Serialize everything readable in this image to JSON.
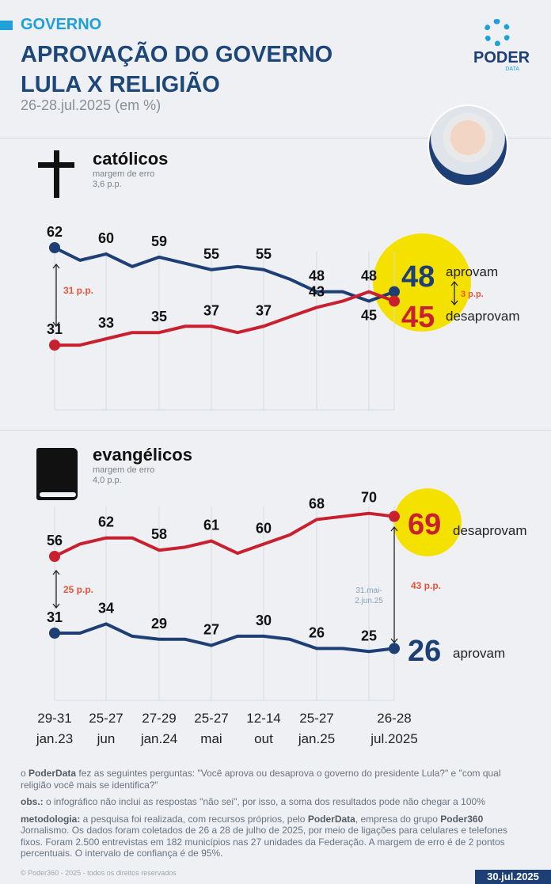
{
  "header": {
    "tag": "GOVERNO",
    "title_line1": "APROVAÇÃO DO GOVERNO",
    "title_line2": "LULA X RELIGIÃO",
    "subtitle": "26-28.jul.2025 (em %)"
  },
  "logo": {
    "name": "PODER",
    "sub": "DATA"
  },
  "colors": {
    "approve": "#1d3f75",
    "disapprove": "#c8202f",
    "highlight": "#f5e100",
    "gap": "#e8553a",
    "accent": "#1ea0dc"
  },
  "chart_data": [
    {
      "type": "line",
      "title": "católicos",
      "icon": "cross-icon",
      "margin_label": "margem de erro",
      "margin_value": "3,6 p.p.",
      "ylim": [
        20,
        75
      ],
      "series": [
        {
          "name": "aprovam",
          "values": [
            62,
            58,
            60,
            56,
            59,
            57,
            55,
            56,
            55,
            52,
            48,
            48,
            45,
            48
          ],
          "labels": {
            "0": "62",
            "2": "60",
            "4": "59",
            "6": "55",
            "8": "55",
            "10": "48"
          },
          "below": {
            "12": "45"
          }
        },
        {
          "name": "desaprovam",
          "values": [
            31,
            31,
            33,
            35,
            35,
            37,
            37,
            35,
            37,
            40,
            43,
            45,
            48,
            45
          ],
          "labels": {
            "0": "31",
            "2": "33",
            "4": "35",
            "6": "37",
            "8": "37",
            "10": "43",
            "12": "48"
          },
          "below": {}
        }
      ],
      "final": {
        "approve": "48",
        "approve_label": "aprovam",
        "disapprove": "45",
        "disapprove_label": "desaprovam",
        "gap": "3 p.p."
      },
      "start_gap": "31 p.p."
    },
    {
      "type": "line",
      "title": "evangélicos",
      "icon": "book-icon",
      "margin_label": "margem de erro",
      "margin_value": "4,0 p.p.",
      "ylim": [
        15,
        80
      ],
      "series": [
        {
          "name": "desaprovam",
          "values": [
            56,
            60,
            62,
            62,
            58,
            59,
            61,
            57,
            60,
            63,
            68,
            69,
            70,
            69
          ],
          "labels": {
            "0": "56",
            "2": "62",
            "4": "58",
            "6": "61",
            "8": "60",
            "10": "68",
            "12": "70"
          },
          "below": {}
        },
        {
          "name": "aprovam",
          "values": [
            31,
            31,
            34,
            30,
            29,
            29,
            27,
            30,
            30,
            29,
            26,
            26,
            25,
            26
          ],
          "labels": {
            "0": "31",
            "2": "34",
            "4": "29",
            "6": "27",
            "8": "30",
            "10": "26",
            "12": "25"
          },
          "below": {}
        }
      ],
      "final": {
        "disapprove": "69",
        "disapprove_label": "desaprovam",
        "approve": "26",
        "approve_label": "aprovam",
        "gap": "43 p.p.",
        "gap_note_1": "31.mai-",
        "gap_note_2": "2.jun.25"
      },
      "start_gap": "25 p.p."
    }
  ],
  "x_axis": {
    "ticks": [
      {
        "index": 0,
        "l1": "29-31",
        "l2": "jan.23"
      },
      {
        "index": 2,
        "l1": "25-27",
        "l2": "jun"
      },
      {
        "index": 4,
        "l1": "27-29",
        "l2": "jan.24"
      },
      {
        "index": 6,
        "l1": "25-27",
        "l2": "mai"
      },
      {
        "index": 8,
        "l1": "12-14",
        "l2": "out"
      },
      {
        "index": 10,
        "l1": "25-27",
        "l2": "jan.25"
      },
      {
        "index": 13,
        "l1": "26-28",
        "l2": "jul.2025"
      }
    ],
    "gridlines": [
      0,
      2,
      4,
      6,
      8,
      10,
      12,
      13
    ]
  },
  "notes": {
    "q_pre": "o ",
    "q_brand": "PoderData",
    "q_text": " fez as seguintes perguntas: \"Você aprova ou desaprova o governo do presidente Lula?\" e \"com qual religião você mais se identifica?\"",
    "obs_label": "obs.:",
    "obs_text": " o infográfico não inclui as respostas \"não sei\", por isso, a soma dos resultados pode não chegar a 100%",
    "met_label": "metodologia:",
    "met_1": " a pesquisa foi realizada, com recursos próprios, pelo ",
    "met_brand": "PoderData",
    "met_2": ", empresa do grupo ",
    "met_brand2": "Poder360",
    "met_3": " Jornalismo. Os dados foram coletados de 26 a 28 de julho de 2025, por meio de ligações para celulares e telefones fixos. Foram 2.500 entrevistas em 182 municípios nas 27 unidades da Federação. A margem de erro é de 2 pontos percentuais. O intervalo de confiança é de 95%."
  },
  "footer": {
    "copyright": "© Poder360 - 2025 - todos os direitos reservados",
    "date": "30.jul.2025"
  }
}
